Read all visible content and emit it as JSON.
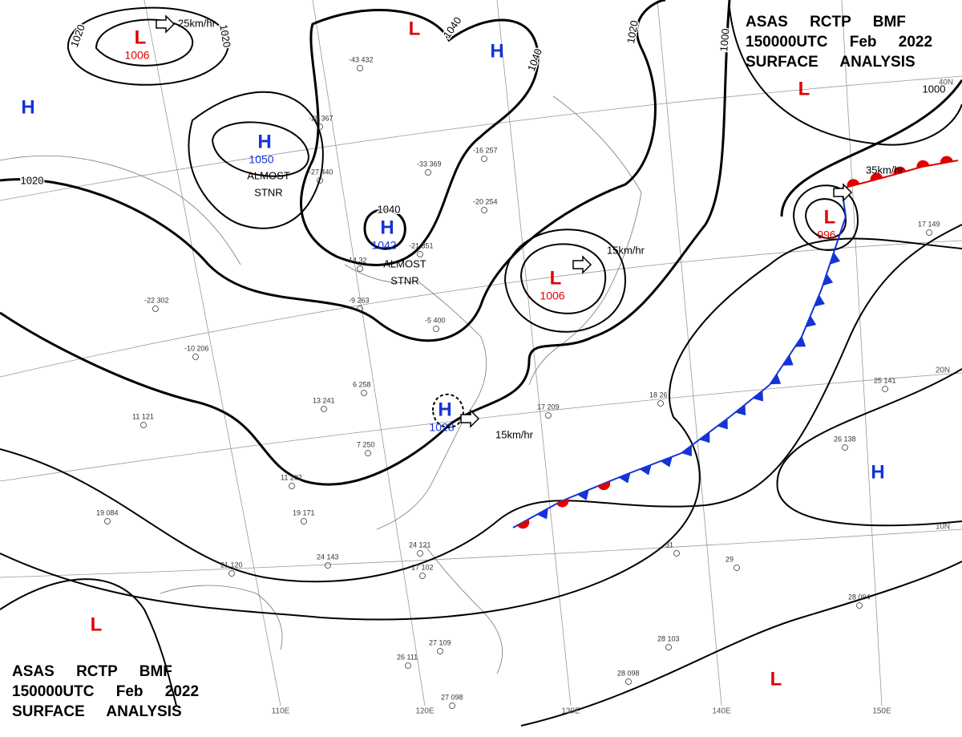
{
  "header_top": [
    "ASAS RCTP BMF",
    "150000UTC Feb 2022",
    "SURFACE ANALYSIS"
  ],
  "header_bottom": [
    "ASAS RCTP BMF",
    "150000UTC Feb 2022",
    "SURFACE ANALYSIS"
  ],
  "centers": [
    {
      "label": "L",
      "pressure": 1006
    },
    {
      "label": "H"
    },
    {
      "label": "H",
      "pressure": 1050
    },
    {
      "label": "H",
      "pressure": 1042
    },
    {
      "label": "L"
    },
    {
      "label": "H"
    },
    {
      "label": "L",
      "pressure": 1006
    },
    {
      "label": "H",
      "pressure": 1028
    },
    {
      "label": "L"
    },
    {
      "label": "L",
      "pressure": 996
    },
    {
      "label": "H"
    },
    {
      "label": "L"
    },
    {
      "label": "L"
    }
  ],
  "isobar_labels": [
    1020,
    1020,
    1040,
    1040,
    1020,
    1000,
    1000,
    1020,
    1040
  ],
  "motions": [
    "25km/hr",
    "15km/hr",
    "15km/hr",
    "35km/hr"
  ],
  "notes": [
    [
      "ALMOST",
      "STNR"
    ],
    [
      "ALMOST",
      "STNR"
    ]
  ],
  "latitudes": [
    "40N",
    "20N",
    "10N"
  ],
  "longitudes": [
    "110E",
    "120E",
    "130E",
    "140E",
    "150E"
  ],
  "stations": [
    "-43 432",
    "-28 367",
    "-27 440",
    "-16 257",
    "-33 369",
    "-20 254",
    "-22 302",
    "-10 206",
    "-9 263",
    "-21 351",
    "14 32",
    "19 084",
    "21 120",
    "24 143",
    "25 141",
    "26 138",
    "28 094",
    "28 103",
    "28 098",
    "29",
    "31",
    "18 26",
    "17 149",
    "11 121",
    "11 202",
    "19 171",
    "7 250",
    "6 258",
    "13 241",
    "-5 400",
    "17 209",
    "27 098",
    "27 109",
    "26 111",
    "24 121",
    "17 102"
  ]
}
